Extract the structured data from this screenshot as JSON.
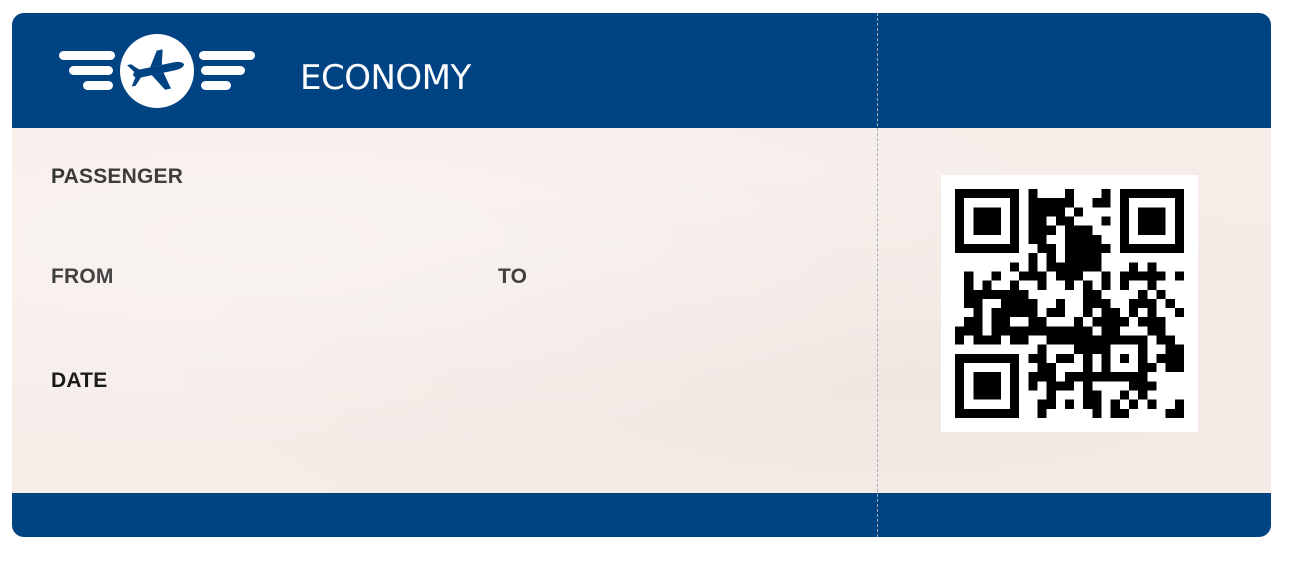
{
  "ticket": {
    "class_label": "ECONOMY",
    "fields": {
      "passenger_label": "PASSENGER",
      "from_label": "FROM",
      "to_label": "TO",
      "date_label": "DATE"
    },
    "logo_icon": "airplane-icon",
    "qr_icon": "qr-code-icon",
    "colors": {
      "band": "#004383",
      "paper": "#f6ede9",
      "label": "#000000"
    }
  }
}
